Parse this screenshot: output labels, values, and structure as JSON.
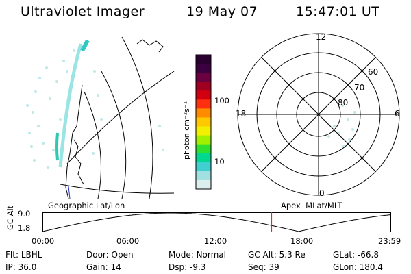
{
  "header": {
    "instrument": "Ultraviolet Imager",
    "date": "19 May 07",
    "time": "15:47:01 UT"
  },
  "colorbar": {
    "unit_label": "photon cm⁻²s⁻¹",
    "tick_labels": [
      "100",
      "10"
    ],
    "colors_top_to_bottom": [
      "#2a0030",
      "#3a0040",
      "#6a0040",
      "#a00020",
      "#d00010",
      "#ff3010",
      "#ff8c00",
      "#ffc800",
      "#f0f000",
      "#a0f000",
      "#30e030",
      "#00d890",
      "#40d0d0",
      "#a0e0e0",
      "#dceeee"
    ]
  },
  "left_panel": {
    "label": "Geographic Lat/Lon"
  },
  "right_panel": {
    "label": "Apex  MLat/MLT",
    "mlt_labels": {
      "top": "12",
      "left": "18",
      "right": "6",
      "bottom": "0"
    },
    "mlat_labels": [
      "60",
      "70",
      "80"
    ]
  },
  "altitude_plot": {
    "ylabel": "GC Alt",
    "yticks": [
      "9.0",
      "1.8"
    ],
    "xticks": [
      "00:00",
      "06:00",
      "12:00",
      "18:00",
      "23:59"
    ],
    "marker_time": "15:47",
    "marker_color": "#d02020"
  },
  "status": {
    "row1": [
      {
        "key": "Flt:",
        "value": "LBHL"
      },
      {
        "key": "Door:",
        "value": "Open"
      },
      {
        "key": "Mode:",
        "value": "Normal"
      },
      {
        "key": "GC Alt:",
        "value": "5.3 Re"
      },
      {
        "key": "GLat:",
        "value": "-66.8"
      }
    ],
    "row2": [
      {
        "key": "IP:",
        "value": "36.0"
      },
      {
        "key": "Gain:",
        "value": "14"
      },
      {
        "key": "Dsp:",
        "value": "-9.3"
      },
      {
        "key": "Seq:",
        "value": "39"
      },
      {
        "key": "GLon:",
        "value": "180.4"
      }
    ]
  }
}
